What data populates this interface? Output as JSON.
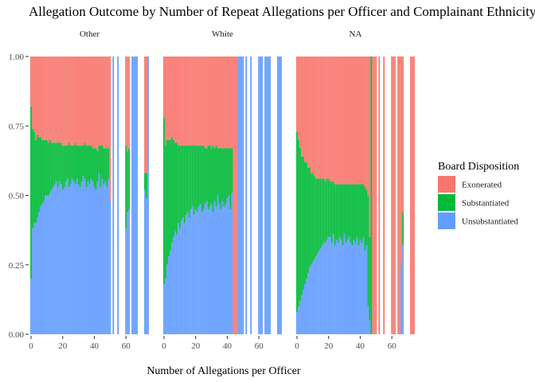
{
  "chart_data": {
    "type": "bar",
    "stacked": "fill",
    "title": "Allegation Outcome by Number of Repeat Allegations per Officer and Complainant Ethnicity",
    "xlabel": "Number of Allegations per Officer",
    "ylabel": "",
    "x_ticks": [
      0,
      20,
      40,
      60
    ],
    "y_ticks": [
      "0.00",
      "0.25",
      "0.50",
      "0.75",
      "1.00"
    ],
    "xlim": [
      -1,
      75
    ],
    "ylim": [
      0,
      1
    ],
    "grid": false,
    "legend": {
      "title": "Board Disposition",
      "position": "right",
      "entries": [
        {
          "name": "Exonerated",
          "color": "#F8766D"
        },
        {
          "name": "Substantiated",
          "color": "#00BA38"
        },
        {
          "name": "Unsubstantiated",
          "color": "#619CFF"
        }
      ]
    },
    "facets": [
      {
        "label": "Other",
        "x": [
          0,
          1,
          2,
          3,
          4,
          5,
          6,
          7,
          8,
          9,
          10,
          11,
          12,
          13,
          14,
          15,
          16,
          17,
          18,
          19,
          20,
          21,
          22,
          23,
          24,
          25,
          26,
          27,
          28,
          29,
          30,
          31,
          32,
          33,
          34,
          35,
          36,
          37,
          38,
          39,
          40,
          41,
          42,
          43,
          44,
          45,
          46,
          47,
          48,
          49,
          50,
          52,
          55,
          60,
          61,
          62,
          64,
          65,
          66,
          67,
          72,
          73,
          74
        ],
        "unsubstantiated": [
          0.2,
          0.38,
          0.4,
          0.4,
          0.42,
          0.44,
          0.46,
          0.47,
          0.48,
          0.5,
          0.5,
          0.5,
          0.51,
          0.52,
          0.53,
          0.54,
          0.55,
          0.53,
          0.55,
          0.54,
          0.52,
          0.53,
          0.55,
          0.56,
          0.53,
          0.54,
          0.56,
          0.55,
          0.54,
          0.56,
          0.54,
          0.53,
          0.55,
          0.57,
          0.56,
          0.53,
          0.55,
          0.54,
          0.56,
          0.55,
          0.53,
          0.52,
          0.55,
          0.58,
          0.53,
          0.56,
          0.54,
          0.55,
          0.53,
          0.56,
          0.48,
          1.0,
          1.0,
          0.38,
          0.44,
          0.45,
          1.0,
          1.0,
          1.0,
          1.0,
          0.52,
          0.49,
          1.0
        ],
        "substantiated": [
          0.62,
          0.36,
          0.33,
          0.3,
          0.3,
          0.27,
          0.25,
          0.23,
          0.22,
          0.2,
          0.2,
          0.19,
          0.19,
          0.17,
          0.16,
          0.15,
          0.14,
          0.16,
          0.14,
          0.15,
          0.16,
          0.15,
          0.13,
          0.12,
          0.16,
          0.14,
          0.12,
          0.13,
          0.15,
          0.12,
          0.14,
          0.15,
          0.13,
          0.11,
          0.13,
          0.15,
          0.13,
          0.14,
          0.12,
          0.12,
          0.14,
          0.15,
          0.11,
          0.1,
          0.15,
          0.12,
          0.13,
          0.12,
          0.14,
          0.11,
          0.0,
          0.0,
          0.0,
          0.3,
          0.22,
          0.22,
          0.0,
          0.0,
          0.0,
          0.0,
          0.06,
          0.09,
          0.0
        ]
      },
      {
        "label": "White",
        "x": [
          0,
          1,
          2,
          3,
          4,
          5,
          6,
          7,
          8,
          9,
          10,
          11,
          12,
          13,
          14,
          15,
          16,
          17,
          18,
          19,
          20,
          21,
          22,
          23,
          24,
          25,
          26,
          27,
          28,
          29,
          30,
          31,
          32,
          33,
          34,
          35,
          36,
          37,
          38,
          39,
          40,
          41,
          42,
          43,
          44,
          45,
          46,
          47,
          48,
          49,
          50,
          52,
          55,
          60,
          61,
          62,
          64,
          65,
          66,
          67,
          72,
          73,
          74
        ],
        "unsubstantiated": [
          0.18,
          0.2,
          0.25,
          0.28,
          0.3,
          0.33,
          0.35,
          0.37,
          0.36,
          0.4,
          0.38,
          0.41,
          0.42,
          0.4,
          0.43,
          0.44,
          0.42,
          0.45,
          0.46,
          0.43,
          0.45,
          0.44,
          0.46,
          0.47,
          0.44,
          0.45,
          0.47,
          0.48,
          0.45,
          0.46,
          0.47,
          0.44,
          0.48,
          0.46,
          0.5,
          0.47,
          0.45,
          0.48,
          0.46,
          0.47,
          0.49,
          0.5,
          0.45,
          0.51,
          0.0,
          0.0,
          0.0,
          1.0,
          1.0,
          1.0,
          1.0,
          1.0,
          1.0,
          1.0,
          1.0,
          1.0,
          1.0,
          1.0,
          1.0,
          1.0,
          1.0,
          1.0,
          1.0
        ],
        "substantiated": [
          0.6,
          0.48,
          0.45,
          0.42,
          0.4,
          0.38,
          0.35,
          0.32,
          0.33,
          0.28,
          0.3,
          0.27,
          0.26,
          0.28,
          0.25,
          0.24,
          0.26,
          0.23,
          0.22,
          0.25,
          0.23,
          0.24,
          0.22,
          0.21,
          0.24,
          0.23,
          0.2,
          0.19,
          0.23,
          0.22,
          0.2,
          0.24,
          0.19,
          0.22,
          0.17,
          0.2,
          0.22,
          0.19,
          0.21,
          0.2,
          0.18,
          0.17,
          0.22,
          0.16,
          0.0,
          0.0,
          0.0,
          0.0,
          0.0,
          0.0,
          0.0,
          0.0,
          0.0,
          0.0,
          0.0,
          0.0,
          0.0,
          0.0,
          0.0,
          0.0,
          0.0,
          0.0,
          0.0
        ]
      },
      {
        "label": "NA",
        "x": [
          0,
          1,
          2,
          3,
          4,
          5,
          6,
          7,
          8,
          9,
          10,
          11,
          12,
          13,
          14,
          15,
          16,
          17,
          18,
          19,
          20,
          21,
          22,
          23,
          24,
          25,
          26,
          27,
          28,
          29,
          30,
          31,
          32,
          33,
          34,
          35,
          36,
          37,
          38,
          39,
          40,
          41,
          42,
          43,
          44,
          45,
          46,
          47,
          48,
          49,
          50,
          52,
          55,
          60,
          61,
          62,
          64,
          65,
          66,
          67,
          72,
          73,
          74
        ],
        "unsubstantiated": [
          0.08,
          0.1,
          0.12,
          0.14,
          0.16,
          0.18,
          0.2,
          0.22,
          0.24,
          0.25,
          0.26,
          0.27,
          0.28,
          0.29,
          0.3,
          0.31,
          0.32,
          0.33,
          0.33,
          0.34,
          0.35,
          0.35,
          0.33,
          0.36,
          0.32,
          0.34,
          0.33,
          0.35,
          0.34,
          0.32,
          0.36,
          0.33,
          0.34,
          0.35,
          0.33,
          0.32,
          0.34,
          0.33,
          0.35,
          0.32,
          0.34,
          0.33,
          0.35,
          0.3,
          0.32,
          0.1,
          0.05,
          0.0,
          0.0,
          0.0,
          0.0,
          0.0,
          0.0,
          0.0,
          0.0,
          0.0,
          0.0,
          0.0,
          0.25,
          0.32,
          0.0,
          0.0,
          0.0
        ],
        "substantiated": [
          0.65,
          0.6,
          0.55,
          0.5,
          0.48,
          0.44,
          0.42,
          0.38,
          0.36,
          0.33,
          0.32,
          0.3,
          0.28,
          0.27,
          0.26,
          0.25,
          0.24,
          0.23,
          0.22,
          0.22,
          0.21,
          0.2,
          0.22,
          0.19,
          0.22,
          0.2,
          0.21,
          0.19,
          0.2,
          0.22,
          0.18,
          0.21,
          0.2,
          0.19,
          0.21,
          0.22,
          0.2,
          0.21,
          0.19,
          0.22,
          0.2,
          0.21,
          0.19,
          0.23,
          0.2,
          0.4,
          0.3,
          1.0,
          0.0,
          0.0,
          0.0,
          0.0,
          0.0,
          0.0,
          0.0,
          0.0,
          0.0,
          0.0,
          0.0,
          0.12,
          0.0,
          0.0,
          0.0
        ]
      }
    ]
  }
}
